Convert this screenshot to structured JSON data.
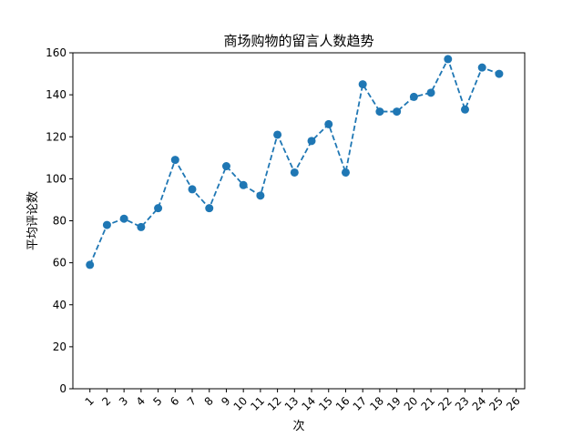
{
  "chart_data": {
    "type": "line",
    "title": "商场购物的留言人数趋势",
    "xlabel": "次",
    "ylabel": "平均评论数",
    "x": [
      1,
      2,
      3,
      4,
      5,
      6,
      7,
      8,
      9,
      10,
      11,
      12,
      13,
      14,
      15,
      16,
      17,
      18,
      19,
      20,
      21,
      22,
      23,
      24,
      25
    ],
    "x_ticks": [
      "1",
      "2",
      "3",
      "4",
      "5",
      "6",
      "7",
      "8",
      "9",
      "10",
      "11",
      "12",
      "13",
      "14",
      "15",
      "16",
      "17",
      "18",
      "19",
      "20",
      "21",
      "22",
      "23",
      "24",
      "25",
      "26"
    ],
    "series": [
      {
        "values": [
          59,
          78,
          81,
          77,
          86,
          109,
          95,
          86,
          106,
          97,
          92,
          121,
          103,
          118,
          126,
          103,
          145,
          132,
          132,
          139,
          141,
          157,
          133,
          153,
          150
        ],
        "color": "#1f77b4",
        "line_style": "dashed",
        "marker": "circle"
      }
    ],
    "ylim": [
      0,
      160
    ],
    "y_ticks": [
      0,
      20,
      40,
      60,
      80,
      100,
      120,
      140,
      160
    ],
    "grid": false,
    "legend": "none"
  }
}
